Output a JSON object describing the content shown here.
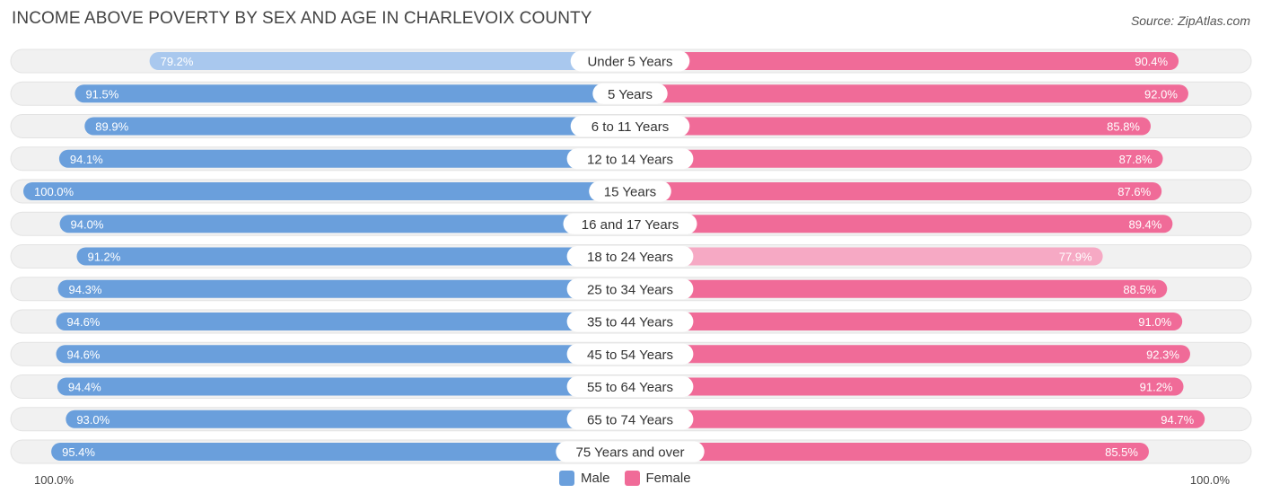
{
  "title": "INCOME ABOVE POVERTY BY SEX AND AGE IN CHARLEVOIX COUNTY",
  "source": "Source: ZipAtlas.com",
  "colors": {
    "male_strong": "#6a9fdc",
    "male_light": "#a9c8ee",
    "female_strong": "#f06b98",
    "female_light": "#f6a9c4",
    "track": "#f1f1f1"
  },
  "axis": {
    "left_label": "100.0%",
    "right_label": "100.0%"
  },
  "legend": {
    "male": "Male",
    "female": "Female"
  },
  "chart_data": {
    "type": "bar",
    "orientation": "horizontal-diverging",
    "title": "INCOME ABOVE POVERTY BY SEX AND AGE IN CHARLEVOIX COUNTY",
    "xlim": [
      0,
      100
    ],
    "categories": [
      "Under 5 Years",
      "5 Years",
      "6 to 11 Years",
      "12 to 14 Years",
      "15 Years",
      "16 and 17 Years",
      "18 to 24 Years",
      "25 to 34 Years",
      "35 to 44 Years",
      "45 to 54 Years",
      "55 to 64 Years",
      "65 to 74 Years",
      "75 Years and over"
    ],
    "series": [
      {
        "name": "Male",
        "values": [
          79.2,
          91.5,
          89.9,
          94.1,
          100.0,
          94.0,
          91.2,
          94.3,
          94.6,
          94.6,
          94.4,
          93.0,
          95.4
        ],
        "labels": [
          "79.2%",
          "91.5%",
          "89.9%",
          "94.1%",
          "100.0%",
          "94.0%",
          "91.2%",
          "94.3%",
          "94.6%",
          "94.6%",
          "94.4%",
          "93.0%",
          "95.4%"
        ]
      },
      {
        "name": "Female",
        "values": [
          90.4,
          92.0,
          85.8,
          87.8,
          87.6,
          89.4,
          77.9,
          88.5,
          91.0,
          92.3,
          91.2,
          94.7,
          85.5
        ],
        "labels": [
          "90.4%",
          "92.0%",
          "85.8%",
          "87.8%",
          "87.6%",
          "89.4%",
          "77.9%",
          "88.5%",
          "91.0%",
          "92.3%",
          "91.2%",
          "94.7%",
          "85.5%"
        ]
      }
    ]
  }
}
